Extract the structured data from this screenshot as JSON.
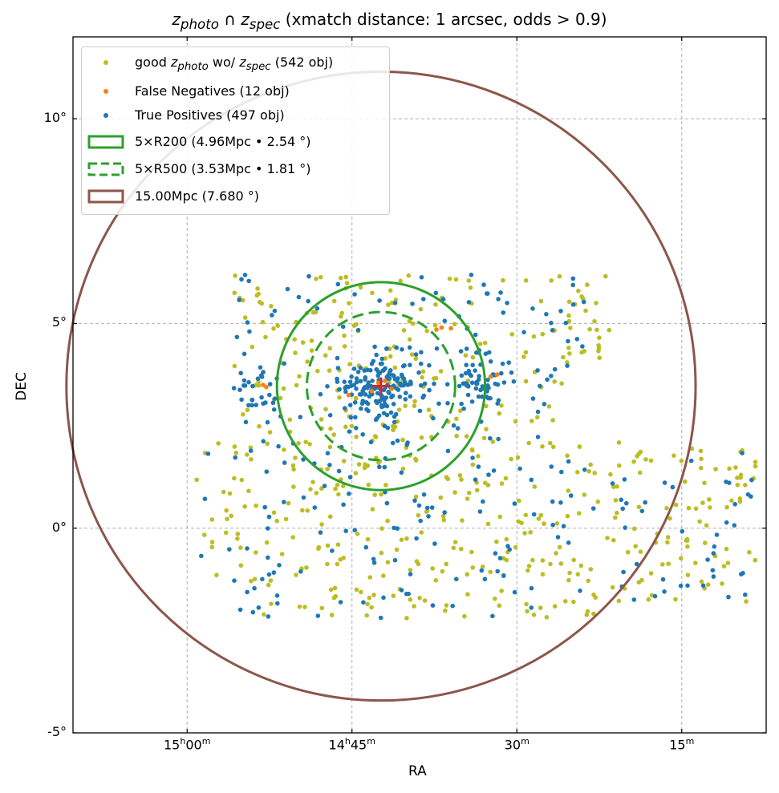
{
  "chart_data": {
    "type": "scatter",
    "title": "z_photo ∩ z_spec (xmatch distance: 1 arcsec, odds > 0.9)",
    "title_parts": {
      "main1": "z",
      "sub1": "photo",
      "cap": " ∩ ",
      "main2": "z",
      "sub2": "spec",
      "rest": " (xmatch distance: 1 arcsec, odds > 0.9)"
    },
    "xlabel": "RA",
    "ylabel": "DEC",
    "x_unit": "hours (RA)",
    "xlim": [
      15.173,
      14.122
    ],
    "ylim": [
      -5.0,
      12.0
    ],
    "x_ticks": [
      {
        "value": 15.0,
        "label_main": "15",
        "label_h": "h",
        "label_min": "00",
        "label_m": "m"
      },
      {
        "value": 14.75,
        "label_main": "14",
        "label_h": "h",
        "label_min": "45",
        "label_m": "m"
      },
      {
        "value": 14.5,
        "label_main": "",
        "label_h": "",
        "label_min": "30",
        "label_m": "m"
      },
      {
        "value": 14.25,
        "label_main": "",
        "label_h": "",
        "label_min": "15",
        "label_m": "m"
      }
    ],
    "y_ticks": [
      {
        "value": 10,
        "label": "10°"
      },
      {
        "value": 5,
        "label": "5°"
      },
      {
        "value": 0,
        "label": "0°"
      },
      {
        "value": -5,
        "label": "-5°"
      }
    ],
    "grid": true,
    "center": {
      "ra": 14.706,
      "dec": 3.47,
      "marker": "plus",
      "color": "#d62728"
    },
    "series": [
      {
        "name": "good z_photo wo/ z_spec (542 obj)",
        "name_parts": {
          "pre": "good ",
          "z1": "z",
          "s1": "photo",
          "mid": " wo/ ",
          "z2": "z",
          "s2": "spec",
          "post": " (542 obj)"
        },
        "color": "#bcbd22",
        "count": 542
      },
      {
        "name": "False Negatives (12 obj)",
        "color": "#ff7f0e",
        "count": 12
      },
      {
        "name": "True Positives (497 obj)",
        "color": "#1f77b4",
        "count": 497
      }
    ],
    "circles": [
      {
        "label": "5×R200 (4.96Mpc • 2.54$^\\circ$)",
        "legend_text": "5×R200 (4.96Mpc • 2.54 °)",
        "radius_deg": 2.54,
        "color": "#2ca02c",
        "style": "solid"
      },
      {
        "label": "5×R500 (3.53Mpc • 1.81$^\\circ$)",
        "legend_text": "5×R500 (3.53Mpc • 1.81 °)",
        "radius_deg": 1.81,
        "color": "#2ca02c",
        "style": "dashed"
      },
      {
        "label": "15.00Mpc (7.680$^\\circ$)",
        "legend_text": "15.00Mpc (7.680 °)",
        "radius_deg": 7.68,
        "color": "#8c564b",
        "style": "solid"
      }
    ],
    "legend_position": "top-left",
    "seed": 7
  },
  "colors": {
    "grid": "#b0b0b0",
    "axes": "#000000"
  }
}
